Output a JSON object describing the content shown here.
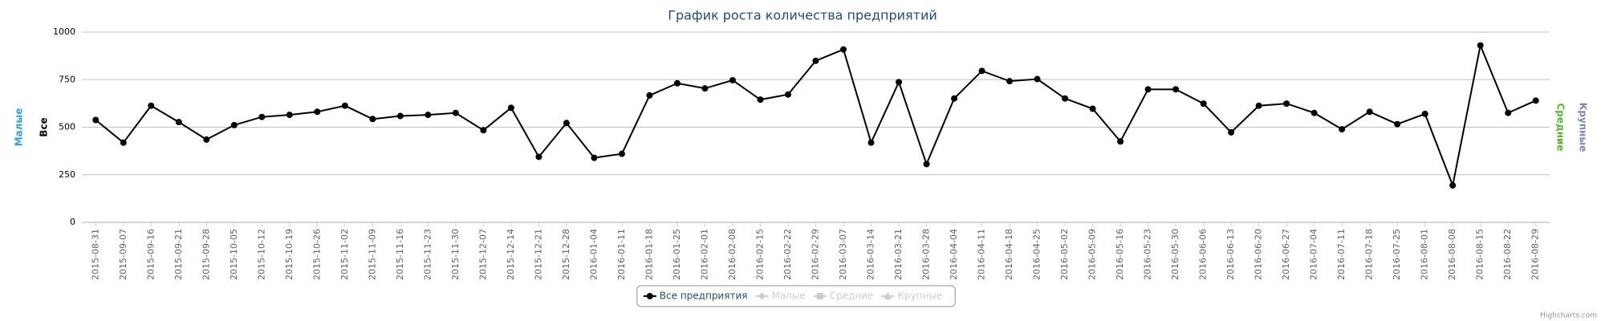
{
  "chart_data": {
    "type": "line",
    "title": "График роста количества предприятий",
    "categories": [
      "2015-08-31",
      "2015-09-07",
      "2015-09-16",
      "2015-09-21",
      "2015-09-28",
      "2015-10-05",
      "2015-10-12",
      "2015-10-19",
      "2015-10-26",
      "2015-11-02",
      "2015-11-09",
      "2015-11-16",
      "2015-11-23",
      "2015-11-30",
      "2015-12-07",
      "2015-12-14",
      "2015-12-21",
      "2015-12-28",
      "2016-01-04",
      "2016-01-11",
      "2016-01-18",
      "2016-01-25",
      "2016-02-01",
      "2016-02-08",
      "2016-02-15",
      "2016-02-22",
      "2016-02-29",
      "2016-03-07",
      "2016-03-14",
      "2016-03-21",
      "2016-03-28",
      "2016-04-04",
      "2016-04-11",
      "2016-04-18",
      "2016-04-25",
      "2016-05-02",
      "2016-05-09",
      "2016-05-16",
      "2016-05-23",
      "2016-05-30",
      "2016-06-06",
      "2016-06-13",
      "2016-06-20",
      "2016-06-27",
      "2016-07-04",
      "2016-07-11",
      "2016-07-18",
      "2016-07-25",
      "2016-08-01",
      "2016-08-08",
      "2016-08-15",
      "2016-08-22",
      "2016-08-29"
    ],
    "series": [
      {
        "name": "Все предприятия",
        "color": "#000000",
        "values": [
          538,
          419,
          613,
          527,
          435,
          511,
          554,
          565,
          581,
          613,
          543,
          559,
          565,
          575,
          484,
          602,
          344,
          522,
          339,
          360,
          667,
          731,
          704,
          747,
          645,
          672,
          849,
          909,
          419,
          737,
          306,
          651,
          796,
          742,
          753,
          651,
          597,
          425,
          699,
          699,
          624,
          473,
          613,
          624,
          575,
          489,
          581,
          516,
          570,
          194,
          930,
          575,
          640
        ]
      },
      {
        "name": "Малые",
        "color": "#cccccc"
      },
      {
        "name": "Средние",
        "color": "#cccccc"
      },
      {
        "name": "Крупные",
        "color": "#cccccc"
      }
    ],
    "ylim": [
      0,
      1000
    ],
    "yticks": [
      0,
      250,
      500,
      750,
      1000
    ],
    "grid": true,
    "left_axis_titles": [
      {
        "text": "Малые",
        "color": "#2f9fd8"
      },
      {
        "text": "Все",
        "color": "#000000"
      }
    ],
    "right_axis_titles": [
      {
        "text": "Средние",
        "color": "#5ab52e"
      },
      {
        "text": "Крупные",
        "color": "#8085c0"
      }
    ],
    "credit": "Highcharts.com"
  }
}
